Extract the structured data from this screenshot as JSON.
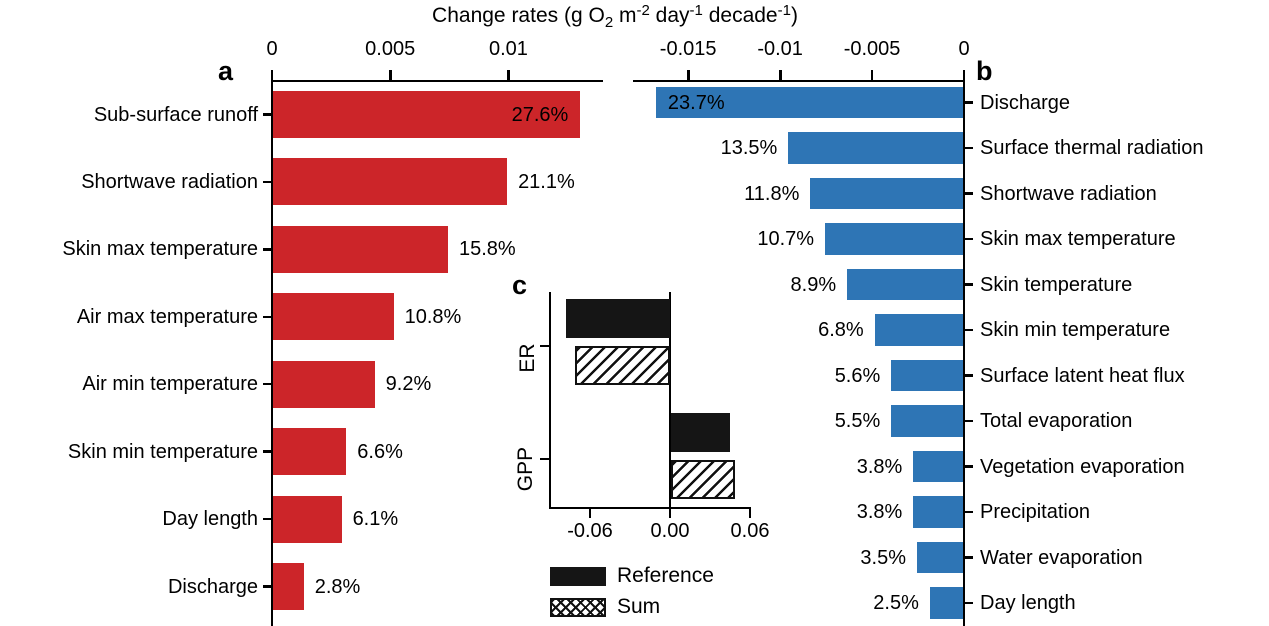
{
  "figure": {
    "title_plain": "Change rates (g O2 m-2 day-1 decade-1)",
    "title_parts": [
      {
        "text": "Change rates (g O"
      },
      {
        "text": "2",
        "script": "sub"
      },
      {
        "text": " m"
      },
      {
        "text": "-2",
        "script": "sup"
      },
      {
        "text": " day"
      },
      {
        "text": "-1",
        "script": "sup"
      },
      {
        "text": " decade"
      },
      {
        "text": "-1",
        "script": "sup"
      },
      {
        "text": ")"
      }
    ],
    "panel_letters": {
      "a": "a",
      "b": "b",
      "c": "c"
    },
    "colors": {
      "positive_bars": "#CC2529",
      "negative_bars": "#2E75B5",
      "reference_fill": "#151515",
      "axis": "#000000",
      "text": "#000000"
    }
  },
  "chart_data": [
    {
      "id": "a",
      "type": "bar",
      "orientation": "horizontal",
      "panel_letter": "a",
      "bar_color": "#CC2529",
      "xlim": [
        0,
        0.014
      ],
      "axis_position": "top",
      "xticks": [
        {
          "value": 0,
          "label": "0"
        },
        {
          "value": 0.005,
          "label": "0.005"
        },
        {
          "value": 0.01,
          "label": "0.01"
        }
      ],
      "bars": [
        {
          "category": "Sub-surface runoff",
          "value": 0.013,
          "pct_label": "27.6%",
          "pct_inside": true
        },
        {
          "category": "Shortwave radiation",
          "value": 0.0099,
          "pct_label": "21.1%",
          "pct_inside": false
        },
        {
          "category": "Skin max temperature",
          "value": 0.0074,
          "pct_label": "15.8%",
          "pct_inside": false
        },
        {
          "category": "Air max temperature",
          "value": 0.0051,
          "pct_label": "10.8%",
          "pct_inside": false
        },
        {
          "category": "Air min temperature",
          "value": 0.0043,
          "pct_label": "9.2%",
          "pct_inside": false
        },
        {
          "category": "Skin min temperature",
          "value": 0.0031,
          "pct_label": "6.6%",
          "pct_inside": false
        },
        {
          "category": "Day length",
          "value": 0.0029,
          "pct_label": "6.1%",
          "pct_inside": false
        },
        {
          "category": "Discharge",
          "value": 0.0013,
          "pct_label": "2.8%",
          "pct_inside": false
        }
      ]
    },
    {
      "id": "b",
      "type": "bar",
      "orientation": "horizontal",
      "panel_letter": "b",
      "bar_color": "#2E75B5",
      "xlim": [
        -0.018,
        0
      ],
      "axis_position": "top",
      "xticks": [
        {
          "value": -0.015,
          "label": "-0.015"
        },
        {
          "value": -0.01,
          "label": "-0.01"
        },
        {
          "value": -0.005,
          "label": "-0.005"
        },
        {
          "value": 0,
          "label": "0"
        }
      ],
      "bars": [
        {
          "category": "Discharge",
          "value": -0.0167,
          "pct_label": "23.7%",
          "pct_inside": true
        },
        {
          "category": "Surface thermal radiation",
          "value": -0.0095,
          "pct_label": "13.5%",
          "pct_inside": false
        },
        {
          "category": "Shortwave radiation",
          "value": -0.0083,
          "pct_label": "11.8%",
          "pct_inside": false
        },
        {
          "category": "Skin max temperature",
          "value": -0.0075,
          "pct_label": "10.7%",
          "pct_inside": false
        },
        {
          "category": "Skin temperature",
          "value": -0.0063,
          "pct_label": "8.9%",
          "pct_inside": false
        },
        {
          "category": "Skin min temperature",
          "value": -0.0048,
          "pct_label": "6.8%",
          "pct_inside": false
        },
        {
          "category": "Surface latent heat flux",
          "value": -0.0039,
          "pct_label": "5.6%",
          "pct_inside": false
        },
        {
          "category": "Total evaporation",
          "value": -0.0039,
          "pct_label": "5.5%",
          "pct_inside": false
        },
        {
          "category": "Vegetation evaporation",
          "value": -0.0027,
          "pct_label": "3.8%",
          "pct_inside": false
        },
        {
          "category": "Precipitation",
          "value": -0.0027,
          "pct_label": "3.8%",
          "pct_inside": false
        },
        {
          "category": "Water evaporation",
          "value": -0.0025,
          "pct_label": "3.5%",
          "pct_inside": false
        },
        {
          "category": "Day length",
          "value": -0.0018,
          "pct_label": "2.5%",
          "pct_inside": false
        }
      ]
    },
    {
      "id": "c",
      "type": "grouped_bar",
      "orientation": "horizontal",
      "panel_letter": "c",
      "categories": [
        "ER",
        "GPP"
      ],
      "series": [
        {
          "name": "Reference",
          "style": "solid",
          "values": {
            "ER": -0.078,
            "GPP": 0.044
          }
        },
        {
          "name": "Sum",
          "style": "hatch",
          "values": {
            "ER": -0.071,
            "GPP": 0.048
          }
        }
      ],
      "xlim": [
        -0.09,
        0.062
      ],
      "xticks": [
        {
          "value": -0.06,
          "label": "-0.06"
        },
        {
          "value": 0,
          "label": "0.00"
        },
        {
          "value": 0.06,
          "label": "0.06"
        }
      ],
      "legend": [
        {
          "label": "Reference",
          "style": "solid"
        },
        {
          "label": "Sum",
          "style": "crosshatch"
        }
      ]
    }
  ]
}
